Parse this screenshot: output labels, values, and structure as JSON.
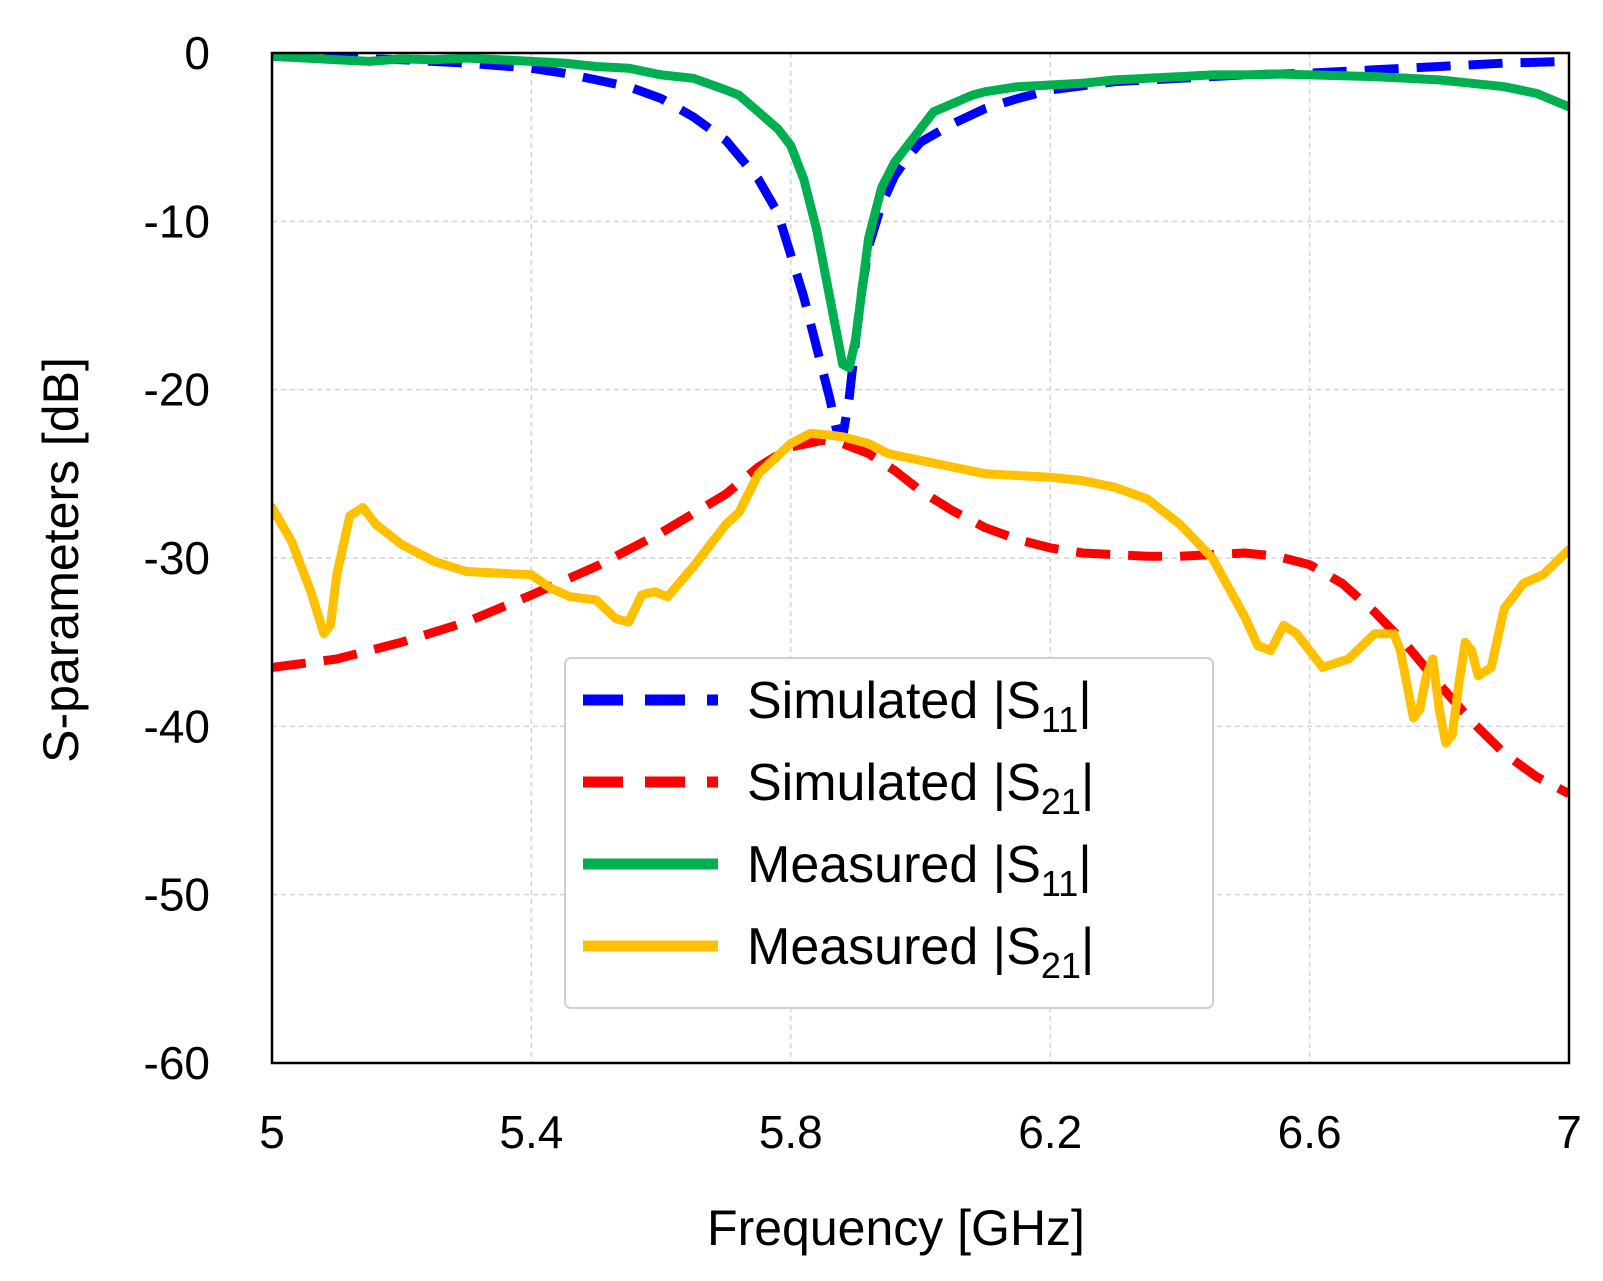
{
  "chart_data": {
    "type": "line",
    "title": "",
    "xlabel": "Frequency [GHz]",
    "ylabel": "S-parameters [dB]",
    "xlim": [
      5,
      7
    ],
    "ylim": [
      -60,
      0
    ],
    "x_ticks": [
      5,
      5.4,
      5.8,
      6.2,
      6.6,
      7
    ],
    "x_tick_labels": [
      "5",
      "5.4",
      "5.8",
      "6.2",
      "6.6",
      "7"
    ],
    "y_ticks": [
      0,
      -10,
      -20,
      -30,
      -40,
      -50,
      -60
    ],
    "y_tick_labels": [
      "0",
      "-10",
      "-20",
      "-30",
      "-40",
      "-50",
      "-60"
    ],
    "grid": true,
    "legend_position": "center-bottom",
    "series": [
      {
        "name": "Simulated |S11|",
        "legend_prefix": "Simulated |S",
        "legend_sub": "11",
        "legend_suffix": "|",
        "color": "#0000FF",
        "style": "dashed",
        "x": [
          5.0,
          5.1,
          5.2,
          5.3,
          5.4,
          5.45,
          5.5,
          5.55,
          5.6,
          5.65,
          5.7,
          5.75,
          5.78,
          5.8,
          5.82,
          5.84,
          5.86,
          5.87,
          5.88,
          5.89,
          5.9,
          5.91,
          5.92,
          5.94,
          5.96,
          5.98,
          6.0,
          6.05,
          6.1,
          6.15,
          6.2,
          6.3,
          6.4,
          6.5,
          6.6,
          6.7,
          6.8,
          6.9,
          7.0
        ],
        "values": [
          -0.2,
          -0.3,
          -0.4,
          -0.6,
          -0.9,
          -1.2,
          -1.6,
          -2.0,
          -2.7,
          -3.8,
          -5.2,
          -7.5,
          -9.5,
          -12.0,
          -14.5,
          -17.5,
          -20.5,
          -22.3,
          -22.8,
          -20.5,
          -17.0,
          -14.0,
          -11.5,
          -9.0,
          -7.3,
          -6.2,
          -5.3,
          -4.2,
          -3.3,
          -2.7,
          -2.2,
          -1.7,
          -1.5,
          -1.3,
          -1.2,
          -1.0,
          -0.8,
          -0.6,
          -0.5
        ]
      },
      {
        "name": "Simulated |S21|",
        "legend_prefix": "Simulated |S",
        "legend_sub": "21",
        "legend_suffix": "|",
        "color": "#FF0000",
        "style": "dashed",
        "x": [
          5.0,
          5.1,
          5.2,
          5.3,
          5.4,
          5.5,
          5.6,
          5.7,
          5.75,
          5.8,
          5.85,
          5.88,
          5.92,
          5.96,
          6.0,
          6.05,
          6.1,
          6.15,
          6.2,
          6.25,
          6.3,
          6.35,
          6.4,
          6.45,
          6.5,
          6.55,
          6.6,
          6.65,
          6.7,
          6.75,
          6.8,
          6.85,
          6.9,
          6.95,
          7.0
        ],
        "values": [
          -36.5,
          -36.0,
          -35.0,
          -33.8,
          -32.2,
          -30.5,
          -28.5,
          -26.2,
          -24.6,
          -23.4,
          -23.0,
          -23.2,
          -23.8,
          -24.8,
          -26.0,
          -27.2,
          -28.2,
          -28.9,
          -29.4,
          -29.7,
          -29.8,
          -29.9,
          -29.9,
          -29.8,
          -29.7,
          -29.9,
          -30.4,
          -31.5,
          -33.2,
          -35.2,
          -37.5,
          -39.7,
          -41.6,
          -43.0,
          -44.0
        ]
      },
      {
        "name": "Measured |S11|",
        "legend_prefix": "Measured |S",
        "legend_sub": "11",
        "legend_suffix": "|",
        "color": "#00B050",
        "style": "solid",
        "x": [
          5.0,
          5.05,
          5.1,
          5.15,
          5.2,
          5.25,
          5.3,
          5.35,
          5.4,
          5.45,
          5.5,
          5.55,
          5.6,
          5.65,
          5.7,
          5.72,
          5.75,
          5.78,
          5.8,
          5.82,
          5.84,
          5.86,
          5.87,
          5.88,
          5.89,
          5.9,
          5.91,
          5.92,
          5.94,
          5.96,
          5.98,
          6.0,
          6.02,
          6.05,
          6.08,
          6.1,
          6.15,
          6.2,
          6.25,
          6.3,
          6.35,
          6.4,
          6.45,
          6.5,
          6.55,
          6.6,
          6.65,
          6.7,
          6.75,
          6.8,
          6.85,
          6.9,
          6.95,
          7.0
        ],
        "values": [
          -0.2,
          -0.3,
          -0.4,
          -0.5,
          -0.35,
          -0.4,
          -0.3,
          -0.4,
          -0.5,
          -0.6,
          -0.8,
          -0.9,
          -1.3,
          -1.5,
          -2.2,
          -2.5,
          -3.5,
          -4.5,
          -5.5,
          -7.5,
          -10.5,
          -14.5,
          -16.5,
          -18.5,
          -18.7,
          -17.0,
          -14.0,
          -11.0,
          -8.0,
          -6.5,
          -5.5,
          -4.5,
          -3.5,
          -3.0,
          -2.5,
          -2.3,
          -2.0,
          -1.9,
          -1.8,
          -1.6,
          -1.5,
          -1.4,
          -1.3,
          -1.3,
          -1.25,
          -1.3,
          -1.35,
          -1.4,
          -1.5,
          -1.6,
          -1.8,
          -2.0,
          -2.4,
          -3.2
        ]
      },
      {
        "name": "Measured |S21|",
        "legend_prefix": "Measured |S",
        "legend_sub": "21",
        "legend_suffix": "|",
        "color": "#FFC000",
        "style": "solid",
        "x": [
          5.0,
          5.03,
          5.06,
          5.08,
          5.09,
          5.1,
          5.12,
          5.14,
          5.16,
          5.2,
          5.25,
          5.3,
          5.35,
          5.4,
          5.43,
          5.46,
          5.5,
          5.53,
          5.55,
          5.57,
          5.59,
          5.61,
          5.65,
          5.7,
          5.72,
          5.75,
          5.8,
          5.83,
          5.86,
          5.88,
          5.92,
          5.95,
          6.0,
          6.05,
          6.1,
          6.15,
          6.2,
          6.25,
          6.3,
          6.35,
          6.4,
          6.45,
          6.5,
          6.52,
          6.54,
          6.56,
          6.58,
          6.62,
          6.66,
          6.7,
          6.73,
          6.74,
          6.75,
          6.76,
          6.77,
          6.78,
          6.79,
          6.8,
          6.81,
          6.82,
          6.83,
          6.84,
          6.85,
          6.86,
          6.88,
          6.9,
          6.93,
          6.96,
          7.0
        ],
        "values": [
          -27.0,
          -29.0,
          -32.0,
          -34.5,
          -34.0,
          -31.0,
          -27.5,
          -27.0,
          -28.0,
          -29.2,
          -30.2,
          -30.8,
          -30.9,
          -31.0,
          -31.8,
          -32.3,
          -32.5,
          -33.6,
          -33.8,
          -32.2,
          -32.0,
          -32.3,
          -30.5,
          -28.0,
          -27.3,
          -25.0,
          -23.2,
          -22.6,
          -22.7,
          -22.8,
          -23.2,
          -23.8,
          -24.2,
          -24.6,
          -25.0,
          -25.1,
          -25.2,
          -25.4,
          -25.8,
          -26.5,
          -28.0,
          -30.0,
          -33.5,
          -35.2,
          -35.5,
          -34.0,
          -34.5,
          -36.5,
          -36.0,
          -34.5,
          -34.5,
          -35.5,
          -37.5,
          -39.5,
          -39.0,
          -37.0,
          -36.0,
          -39.0,
          -41.0,
          -40.5,
          -37.5,
          -35.0,
          -35.5,
          -37.0,
          -36.5,
          -33.0,
          -31.5,
          -31.0,
          -29.5
        ]
      }
    ]
  }
}
